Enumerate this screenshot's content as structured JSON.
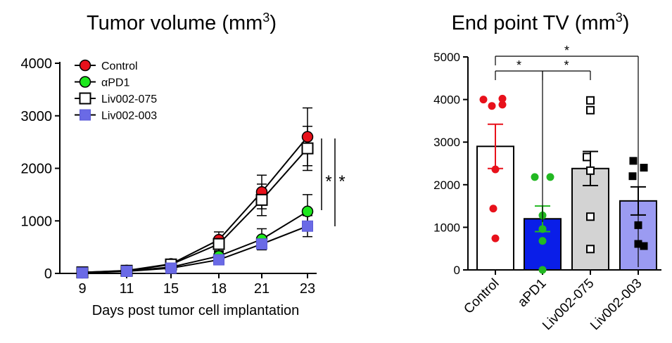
{
  "chart_data": [
    {
      "type": "line",
      "title": "Tumor volume (mm",
      "title_sup": "3",
      "title_close": ")",
      "xlabel": "Days post tumor cell implantation",
      "ylabel": "",
      "x": [
        9,
        11,
        15,
        18,
        21,
        23
      ],
      "x_tick_labels": [
        "9",
        "11",
        "15",
        "18",
        "21",
        "23"
      ],
      "ylim": [
        0,
        4000
      ],
      "y_ticks": [
        0,
        1000,
        2000,
        3000,
        4000
      ],
      "y_tick_labels": [
        "0",
        "1000",
        "2000",
        "3000",
        "4000"
      ],
      "grid": false,
      "legend_position": "top-left",
      "series": [
        {
          "name": "Control",
          "marker": "circle",
          "color": "#e8111b",
          "fill": "#e8111b",
          "values": [
            20,
            55,
            180,
            640,
            1550,
            2600
          ],
          "error": [
            10,
            20,
            40,
            150,
            320,
            550
          ]
        },
        {
          "name": "αPD1",
          "marker": "circle",
          "color": "#1de81d",
          "fill": "#1de81d",
          "values": [
            15,
            45,
            120,
            330,
            650,
            1180
          ],
          "error": [
            8,
            15,
            30,
            80,
            200,
            320
          ]
        },
        {
          "name": "Liv002-075",
          "marker": "square-open",
          "color": "#000000",
          "fill": "#ffffff",
          "values": [
            20,
            50,
            170,
            560,
            1400,
            2380
          ],
          "error": [
            10,
            20,
            40,
            130,
            300,
            420
          ]
        },
        {
          "name": "Liv002-003",
          "marker": "square",
          "color": "#5b5bd6",
          "fill": "#6a6ae6",
          "values": [
            10,
            40,
            100,
            260,
            560,
            900
          ],
          "error": [
            6,
            12,
            25,
            60,
            110,
            200
          ]
        }
      ],
      "significance": [
        "*",
        "*"
      ]
    },
    {
      "type": "bar",
      "title": "End point TV (mm",
      "title_sup": "3",
      "title_close": ")",
      "xlabel": "",
      "ylabel": "",
      "categories": [
        "Control",
        "aPD1",
        "Liv002-075",
        "Liv002-003"
      ],
      "ylim": [
        0,
        5000
      ],
      "y_ticks": [
        0,
        1000,
        2000,
        3000,
        4000,
        5000
      ],
      "y_tick_labels": [
        "0",
        "1000",
        "2000",
        "3000",
        "4000",
        "5000"
      ],
      "grid": false,
      "bar_fills": [
        "#ffffff",
        "#0a1ee8",
        "#d3d3d3",
        "#9b9bf2"
      ],
      "point_colors": [
        "#e8111b",
        "#22b822",
        "#000000",
        "#000000"
      ],
      "point_markers": [
        "circle",
        "circle",
        "square-open",
        "square"
      ],
      "values": [
        2900,
        1200,
        2380,
        1620
      ],
      "error": [
        520,
        300,
        400,
        330
      ],
      "points": [
        [
          4000,
          3850,
          3880,
          4020,
          2360,
          1440,
          740
        ],
        [
          2180,
          2180,
          1280,
          960,
          680,
          0
        ],
        [
          3980,
          3750,
          2650,
          2330,
          1250,
          490
        ],
        [
          2560,
          2400,
          2200,
          1050,
          610,
          560
        ]
      ],
      "comparisons": [
        {
          "from": 0,
          "to": 1,
          "label": "*"
        },
        {
          "from": 1,
          "to": 2,
          "label": "*"
        },
        {
          "from": 0,
          "to": 3,
          "label": "*"
        }
      ]
    }
  ]
}
